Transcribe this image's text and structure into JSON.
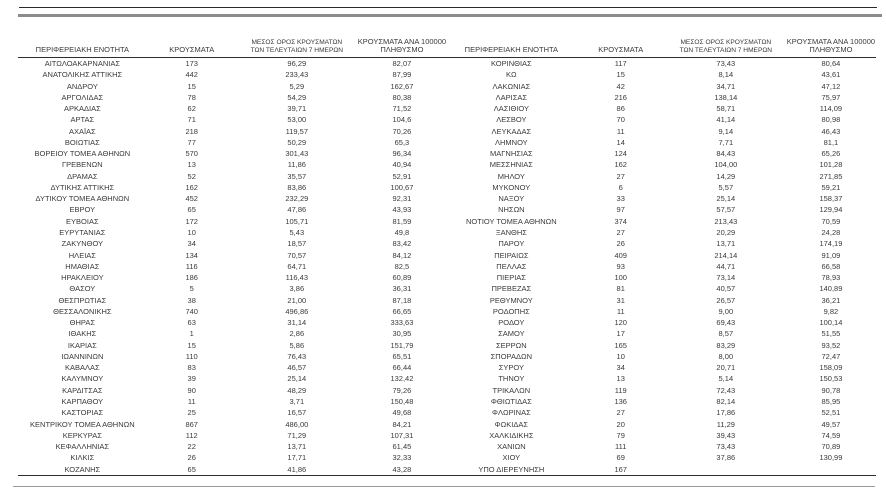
{
  "document": {
    "language": "el",
    "description_colors": {
      "text": "#3a3a3a",
      "rule_dark": "#2e2e2e",
      "rule_gray": "#8c8c8c",
      "background": "#ffffff"
    },
    "table_headers": {
      "region": "ΠΕΡΙΦΕΡΕΙΑΚΗ ΕΝΟΤΗΤΑ",
      "cases": "ΚΡΟΥΣΜΑΤΑ",
      "avg7": "ΜΕΣΟΣ ΟΡΟΣ ΚΡΟΥΣΜΑΤΩΝ\nΤΩΝ ΤΕΛΕΥΤΑΙΩΝ 7 ΗΜΕΡΩΝ",
      "per100k": "ΚΡΟΥΣΜΑΤΑ ΑΝΑ 100000\nΠΛΗΘΥΣΜΟ"
    },
    "left_rows": [
      [
        "ΑΙΤΩΛΟΑΚΑΡΝΑΝΙΑΣ",
        "173",
        "96,29",
        "82,07"
      ],
      [
        "ΑΝΑΤΟΛΙΚΗΣ ΑΤΤΙΚΗΣ",
        "442",
        "233,43",
        "87,99"
      ],
      [
        "ΑΝΔΡΟΥ",
        "15",
        "5,29",
        "162,67"
      ],
      [
        "ΑΡΓΟΛΙΔΑΣ",
        "78",
        "54,29",
        "80,38"
      ],
      [
        "ΑΡΚΑΔΙΑΣ",
        "62",
        "39,71",
        "71,52"
      ],
      [
        "ΑΡΤΑΣ",
        "71",
        "53,00",
        "104,6"
      ],
      [
        "ΑΧΑΪΑΣ",
        "218",
        "119,57",
        "70,26"
      ],
      [
        "ΒΟΙΩΤΙΑΣ",
        "77",
        "50,29",
        "65,3"
      ],
      [
        "ΒΟΡΕΙΟΥ ΤΟΜΕΑ ΑΘΗΝΩΝ",
        "570",
        "301,43",
        "96,34"
      ],
      [
        "ΓΡΕΒΕΝΩΝ",
        "13",
        "11,86",
        "40,94"
      ],
      [
        "ΔΡΑΜΑΣ",
        "52",
        "35,57",
        "52,91"
      ],
      [
        "ΔΥΤΙΚΗΣ ΑΤΤΙΚΗΣ",
        "162",
        "83,86",
        "100,67"
      ],
      [
        "ΔΥΤΙΚΟΥ ΤΟΜΕΑ ΑΘΗΝΩΝ",
        "452",
        "232,29",
        "92,31"
      ],
      [
        "ΕΒΡΟΥ",
        "65",
        "47,86",
        "43,93"
      ],
      [
        "ΕΥΒΟΙΑΣ",
        "172",
        "105,71",
        "81,59"
      ],
      [
        "ΕΥΡΥΤΑΝΙΑΣ",
        "10",
        "5,43",
        "49,8"
      ],
      [
        "ΖΑΚΥΝΘΟΥ",
        "34",
        "18,57",
        "83,42"
      ],
      [
        "ΗΛΕΙΑΣ",
        "134",
        "70,57",
        "84,12"
      ],
      [
        "ΗΜΑΘΙΑΣ",
        "116",
        "64,71",
        "82,5"
      ],
      [
        "ΗΡΑΚΛΕΙΟΥ",
        "186",
        "116,43",
        "60,89"
      ],
      [
        "ΘΑΣΟΥ",
        "5",
        "3,86",
        "36,31"
      ],
      [
        "ΘΕΣΠΡΩΤΙΑΣ",
        "38",
        "21,00",
        "87,18"
      ],
      [
        "ΘΕΣΣΑΛΟΝΙΚΗΣ",
        "740",
        "496,86",
        "66,65"
      ],
      [
        "ΘΗΡΑΣ",
        "63",
        "31,14",
        "333,63"
      ],
      [
        "ΙΘΑΚΗΣ",
        "1",
        "2,86",
        "30,95"
      ],
      [
        "ΙΚΑΡΙΑΣ",
        "15",
        "5,86",
        "151,79"
      ],
      [
        "ΙΩΑΝΝΙΝΩΝ",
        "110",
        "76,43",
        "65,51"
      ],
      [
        "ΚΑΒΑΛΑΣ",
        "83",
        "46,57",
        "66,44"
      ],
      [
        "ΚΑΛΥΜΝΟΥ",
        "39",
        "25,14",
        "132,42"
      ],
      [
        "ΚΑΡΔΙΤΣΑΣ",
        "90",
        "48,29",
        "79,26"
      ],
      [
        "ΚΑΡΠΑΘΟΥ",
        "11",
        "3,71",
        "150,48"
      ],
      [
        "ΚΑΣΤΟΡΙΑΣ",
        "25",
        "16,57",
        "49,68"
      ],
      [
        "ΚΕΝΤΡΙΚΟΥ ΤΟΜΕΑ ΑΘΗΝΩΝ",
        "867",
        "486,00",
        "84,21"
      ],
      [
        "ΚΕΡΚΥΡΑΣ",
        "112",
        "71,29",
        "107,31"
      ],
      [
        "ΚΕΦΑΛΛΗΝΙΑΣ",
        "22",
        "13,71",
        "61,45"
      ],
      [
        "ΚΙΛΚΙΣ",
        "26",
        "17,71",
        "32,33"
      ],
      [
        "ΚΟΖΑΝΗΣ",
        "65",
        "41,86",
        "43,28"
      ]
    ],
    "right_rows": [
      [
        "ΚΟΡΙΝΘΙΑΣ",
        "117",
        "73,43",
        "80,64"
      ],
      [
        "ΚΩ",
        "15",
        "8,14",
        "43,61"
      ],
      [
        "ΛΑΚΩΝΙΑΣ",
        "42",
        "34,71",
        "47,12"
      ],
      [
        "ΛΑΡΙΣΑΣ",
        "216",
        "138,14",
        "75,97"
      ],
      [
        "ΛΑΣΙΘΙΟΥ",
        "86",
        "58,71",
        "114,09"
      ],
      [
        "ΛΕΣΒΟΥ",
        "70",
        "41,14",
        "80,98"
      ],
      [
        "ΛΕΥΚΑΔΑΣ",
        "11",
        "9,14",
        "46,43"
      ],
      [
        "ΛΗΜΝΟΥ",
        "14",
        "7,71",
        "81,1"
      ],
      [
        "ΜΑΓΝΗΣΙΑΣ",
        "124",
        "84,43",
        "65,26"
      ],
      [
        "ΜΕΣΣΗΝΙΑΣ",
        "162",
        "104,00",
        "101,28"
      ],
      [
        "ΜΗΛΟΥ",
        "27",
        "14,29",
        "271,85"
      ],
      [
        "ΜΥΚΟΝΟΥ",
        "6",
        "5,57",
        "59,21"
      ],
      [
        "ΝΑΞΟΥ",
        "33",
        "25,14",
        "158,37"
      ],
      [
        "ΝΗΣΩΝ",
        "97",
        "57,57",
        "129,94"
      ],
      [
        "ΝΟΤΙΟΥ ΤΟΜΕΑ ΑΘΗΝΩΝ",
        "374",
        "213,43",
        "70,59"
      ],
      [
        "ΞΑΝΘΗΣ",
        "27",
        "20,29",
        "24,28"
      ],
      [
        "ΠΑΡΟΥ",
        "26",
        "13,71",
        "174,19"
      ],
      [
        "ΠΕΙΡΑΙΩΣ",
        "409",
        "214,14",
        "91,09"
      ],
      [
        "ΠΕΛΛΑΣ",
        "93",
        "44,71",
        "66,58"
      ],
      [
        "ΠΙΕΡΙΑΣ",
        "100",
        "73,14",
        "78,93"
      ],
      [
        "ΠΡΕΒΕΖΑΣ",
        "81",
        "40,57",
        "140,89"
      ],
      [
        "ΡΕΘΥΜΝΟΥ",
        "31",
        "26,57",
        "36,21"
      ],
      [
        "ΡΟΔΟΠΗΣ",
        "11",
        "9,00",
        "9,82"
      ],
      [
        "ΡΟΔΟΥ",
        "120",
        "69,43",
        "100,14"
      ],
      [
        "ΣΑΜΟΥ",
        "17",
        "8,57",
        "51,55"
      ],
      [
        "ΣΕΡΡΩΝ",
        "165",
        "83,29",
        "93,52"
      ],
      [
        "ΣΠΟΡΑΔΩΝ",
        "10",
        "8,00",
        "72,47"
      ],
      [
        "ΣΥΡΟΥ",
        "34",
        "20,71",
        "158,09"
      ],
      [
        "ΤΗΝΟΥ",
        "13",
        "5,14",
        "150,53"
      ],
      [
        "ΤΡΙΚΑΛΩΝ",
        "119",
        "72,43",
        "90,78"
      ],
      [
        "ΦΘΙΩΤΙΔΑΣ",
        "136",
        "82,14",
        "85,95"
      ],
      [
        "ΦΛΩΡΙΝΑΣ",
        "27",
        "17,86",
        "52,51"
      ],
      [
        "ΦΩΚΙΔΑΣ",
        "20",
        "11,29",
        "49,57"
      ],
      [
        "ΧΑΛΚΙΔΙΚΗΣ",
        "79",
        "39,43",
        "74,59"
      ],
      [
        "ΧΑΝΙΩΝ",
        "111",
        "73,43",
        "70,89"
      ],
      [
        "ΧΙΟΥ",
        "69",
        "37,86",
        "130,99"
      ],
      [
        "ΥΠΟ ΔΙΕΡΕΥΝΗΣΗ",
        "167",
        "",
        ""
      ]
    ]
  }
}
